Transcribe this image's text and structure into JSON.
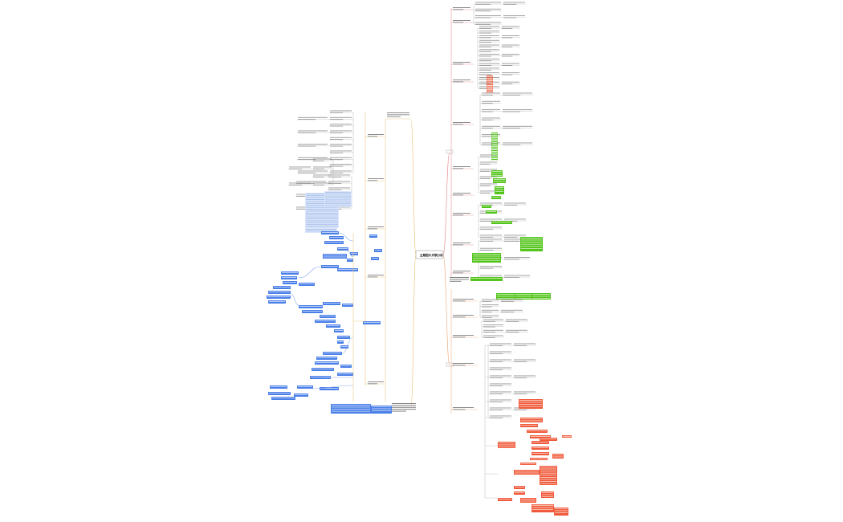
{
  "root": {
    "label": "主题图片关联分析",
    "branch_colors": {
      "upper_right": "#e8868a",
      "lower_right": "#f0a878",
      "left": "#e8c070"
    },
    "highlight_colors": {
      "blue": "#4a7fe8",
      "green": "#52c41a",
      "red": "#f05a3a"
    }
  }
}
